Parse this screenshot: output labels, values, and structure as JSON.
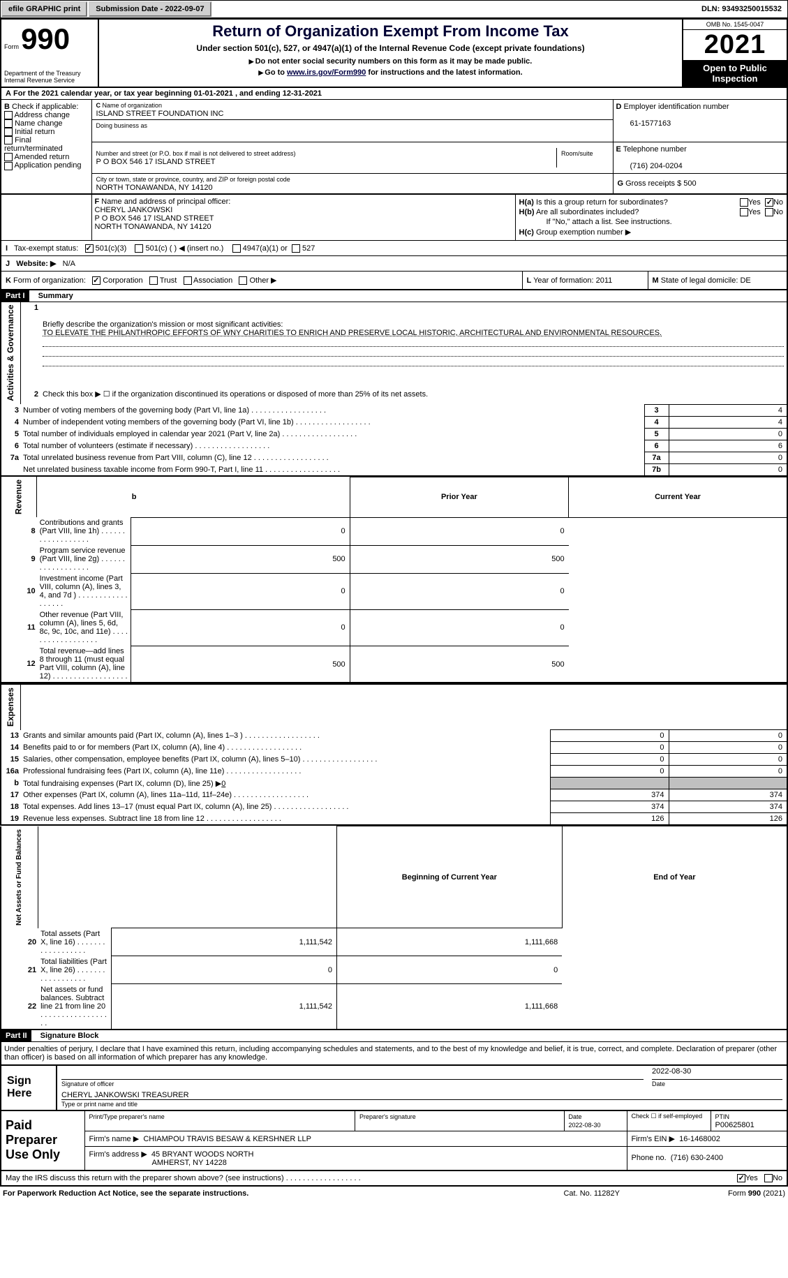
{
  "topbar": {
    "efile": "efile GRAPHIC print",
    "submission": "Submission Date - 2022-09-07",
    "dln": "DLN: 93493250015532"
  },
  "header": {
    "form_word": "Form",
    "form_number": "990",
    "title": "Return of Organization Exempt From Income Tax",
    "subtitle": "Under section 501(c), 527, or 4947(a)(1) of the Internal Revenue Code (except private foundations)",
    "ssn_warning": "Do not enter social security numbers on this form as it may be made public.",
    "goto_prefix": "Go to ",
    "goto_link": "www.irs.gov/Form990",
    "goto_suffix": " for instructions and the latest information.",
    "dept": "Department of the Treasury",
    "irs": "Internal Revenue Service",
    "omb": "OMB No. 1545-0047",
    "year": "2021",
    "open_inspect": "Open to Public Inspection"
  },
  "sectionA": {
    "line": "For the 2021 calendar year, or tax year beginning 01-01-2021    , and ending 12-31-2021"
  },
  "sectionB": {
    "label": "Check if applicable:",
    "opts": [
      "Address change",
      "Name change",
      "Initial return",
      "Final return/terminated",
      "Amended return",
      "Application pending"
    ]
  },
  "sectionC": {
    "name_label": "Name of organization",
    "name": "ISLAND STREET FOUNDATION INC",
    "dba_label": "Doing business as",
    "dba": "",
    "street_label": "Number and street (or P.O. box if mail is not delivered to street address)",
    "room_label": "Room/suite",
    "street": "P O BOX 546 17 ISLAND STREET",
    "city_label": "City or town, state or province, country, and ZIP or foreign postal code",
    "city": "NORTH TONAWANDA, NY  14120"
  },
  "sectionD": {
    "label": "Employer identification number",
    "ein": "61-1577163"
  },
  "sectionE": {
    "label": "Telephone number",
    "phone": "(716) 204-0204"
  },
  "sectionG": {
    "label": "Gross receipts $",
    "value": "500"
  },
  "sectionF": {
    "label": "Name and address of principal officer:",
    "name": "CHERYL JANKOWSKI",
    "addr1": "P O BOX 546 17 ISLAND STREET",
    "addr2": "NORTH TONAWANDA, NY  14120"
  },
  "sectionH": {
    "a": "Is this a group return for subordinates?",
    "b": "Are all subordinates included?",
    "b_note": "If \"No,\" attach a list. See instructions.",
    "c": "Group exemption number ▶",
    "yes": "Yes",
    "no": "No"
  },
  "sectionI": {
    "label": "Tax-exempt status:",
    "c3": "501(c)(3)",
    "c": "501(c) (  ) ◀ (insert no.)",
    "a1": "4947(a)(1) or",
    "527": "527"
  },
  "sectionJ": {
    "label": "Website: ▶",
    "value": "N/A"
  },
  "sectionK": {
    "label": "Form of organization:",
    "opts": [
      "Corporation",
      "Trust",
      "Association",
      "Other ▶"
    ]
  },
  "sectionL": {
    "label": "Year of formation:",
    "value": "2011"
  },
  "sectionM": {
    "label": "State of legal domicile:",
    "value": "DE"
  },
  "part1": {
    "header": "Part I",
    "title": "Summary",
    "mission_label": "Briefly describe the organization's mission or most significant activities:",
    "mission": "TO ELEVATE THE PHILANTHROPIC EFFORTS OF WNY CHARITIES TO ENRICH AND PRESERVE LOCAL HISTORIC, ARCHITECTURAL AND ENVIRONMENTAL RESOURCES.",
    "line2": "Check this box ▶ ☐  if the organization discontinued its operations or disposed of more than 25% of its net assets.",
    "governance_label": "Activities & Governance",
    "revenue_label": "Revenue",
    "expenses_label": "Expenses",
    "netassets_label": "Net Assets or Fund Balances",
    "rows_gov": [
      {
        "n": "3",
        "d": "Number of voting members of the governing body (Part VI, line 1a)",
        "box": "3",
        "v": "4"
      },
      {
        "n": "4",
        "d": "Number of independent voting members of the governing body (Part VI, line 1b)",
        "box": "4",
        "v": "4"
      },
      {
        "n": "5",
        "d": "Total number of individuals employed in calendar year 2021 (Part V, line 2a)",
        "box": "5",
        "v": "0"
      },
      {
        "n": "6",
        "d": "Total number of volunteers (estimate if necessary)",
        "box": "6",
        "v": "6"
      },
      {
        "n": "7a",
        "d": "Total unrelated business revenue from Part VIII, column (C), line 12",
        "box": "7a",
        "v": "0"
      },
      {
        "n": "",
        "d": "Net unrelated business taxable income from Form 990-T, Part I, line 11",
        "box": "7b",
        "v": "0"
      }
    ],
    "col_prior": "Prior Year",
    "col_current": "Current Year",
    "rows_rev": [
      {
        "n": "8",
        "d": "Contributions and grants (Part VIII, line 1h)",
        "p": "0",
        "c": "0"
      },
      {
        "n": "9",
        "d": "Program service revenue (Part VIII, line 2g)",
        "p": "500",
        "c": "500"
      },
      {
        "n": "10",
        "d": "Investment income (Part VIII, column (A), lines 3, 4, and 7d )",
        "p": "0",
        "c": "0"
      },
      {
        "n": "11",
        "d": "Other revenue (Part VIII, column (A), lines 5, 6d, 8c, 9c, 10c, and 11e)",
        "p": "0",
        "c": "0"
      },
      {
        "n": "12",
        "d": "Total revenue—add lines 8 through 11 (must equal Part VIII, column (A), line 12)",
        "p": "500",
        "c": "500"
      }
    ],
    "rows_exp": [
      {
        "n": "13",
        "d": "Grants and similar amounts paid (Part IX, column (A), lines 1–3 )",
        "p": "0",
        "c": "0"
      },
      {
        "n": "14",
        "d": "Benefits paid to or for members (Part IX, column (A), line 4)",
        "p": "0",
        "c": "0"
      },
      {
        "n": "15",
        "d": "Salaries, other compensation, employee benefits (Part IX, column (A), lines 5–10)",
        "p": "0",
        "c": "0"
      },
      {
        "n": "16a",
        "d": "Professional fundraising fees (Part IX, column (A), line 11e)",
        "p": "0",
        "c": "0"
      },
      {
        "n": "b",
        "d": "Total fundraising expenses (Part IX, column (D), line 25) ▶",
        "p": "shade",
        "c": "shade",
        "inline": "0"
      },
      {
        "n": "17",
        "d": "Other expenses (Part IX, column (A), lines 11a–11d, 11f–24e)",
        "p": "374",
        "c": "374"
      },
      {
        "n": "18",
        "d": "Total expenses. Add lines 13–17 (must equal Part IX, column (A), line 25)",
        "p": "374",
        "c": "374"
      },
      {
        "n": "19",
        "d": "Revenue less expenses. Subtract line 18 from line 12",
        "p": "126",
        "c": "126"
      }
    ],
    "col_begin": "Beginning of Current Year",
    "col_end": "End of Year",
    "rows_net": [
      {
        "n": "20",
        "d": "Total assets (Part X, line 16)",
        "p": "1,111,542",
        "c": "1,111,668"
      },
      {
        "n": "21",
        "d": "Total liabilities (Part X, line 26)",
        "p": "0",
        "c": "0"
      },
      {
        "n": "22",
        "d": "Net assets or fund balances. Subtract line 21 from line 20",
        "p": "1,111,542",
        "c": "1,111,668"
      }
    ]
  },
  "part2": {
    "header": "Part II",
    "title": "Signature Block",
    "declaration": "Under penalties of perjury, I declare that I have examined this return, including accompanying schedules and statements, and to the best of my knowledge and belief, it is true, correct, and complete. Declaration of preparer (other than officer) is based on all information of which preparer has any knowledge.",
    "sign_here": "Sign Here",
    "sig_officer": "Signature of officer",
    "sig_date": "2022-08-30",
    "date_label": "Date",
    "officer_name": "CHERYL JANKOWSKI TREASURER",
    "type_name": "Type or print name and title",
    "paid": "Paid Preparer Use Only",
    "prep_name_label": "Print/Type preparer's name",
    "prep_sig_label": "Preparer's signature",
    "prep_date_label": "Date",
    "prep_date": "2022-08-30",
    "self_emp": "Check ☐ if self-employed",
    "ptin_label": "PTIN",
    "ptin": "P00625801",
    "firm_name_label": "Firm's name    ▶",
    "firm_name": "CHIAMPOU TRAVIS BESAW & KERSHNER LLP",
    "firm_ein_label": "Firm's EIN ▶",
    "firm_ein": "16-1468002",
    "firm_addr_label": "Firm's address ▶",
    "firm_addr1": "45 BRYANT WOODS NORTH",
    "firm_addr2": "AMHERST, NY  14228",
    "firm_phone_label": "Phone no.",
    "firm_phone": "(716) 630-2400",
    "discuss": "May the IRS discuss this return with the preparer shown above? (see instructions)",
    "yes": "Yes",
    "no": "No"
  },
  "footer": {
    "pra": "For Paperwork Reduction Act Notice, see the separate instructions.",
    "cat": "Cat. No. 11282Y",
    "form": "Form 990 (2021)"
  }
}
